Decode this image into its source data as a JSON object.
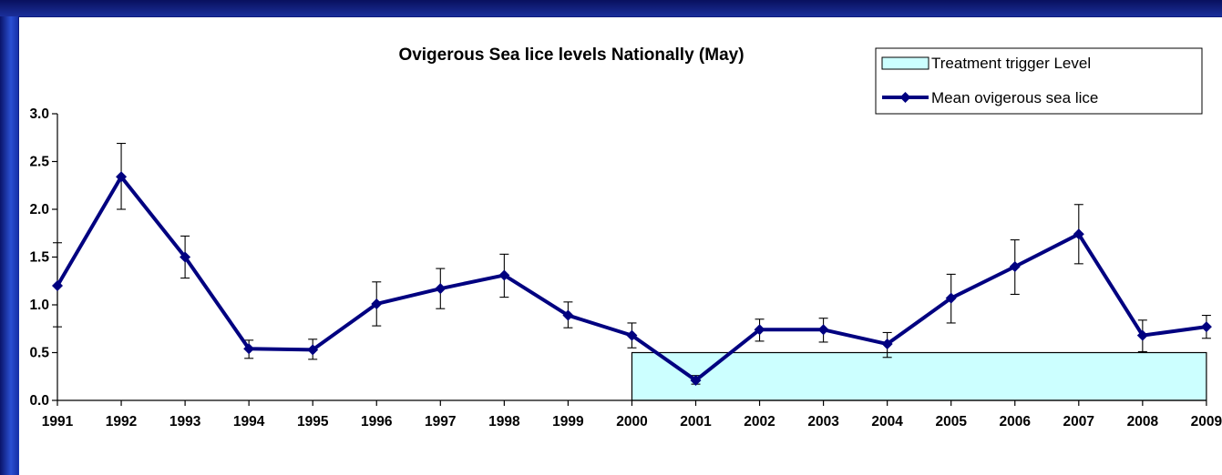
{
  "chart_data": {
    "type": "line",
    "title": "Ovigerous Sea lice levels Nationally (May)",
    "xlabel": "",
    "ylabel": "",
    "ylim": [
      0,
      3
    ],
    "yticks": [
      "0.0",
      "0.5",
      "1.0",
      "1.5",
      "2.0",
      "2.5",
      "3.0"
    ],
    "categories": [
      "1991",
      "1992",
      "1993",
      "1994",
      "1995",
      "1996",
      "1997",
      "1998",
      "1999",
      "2000",
      "2001",
      "2002",
      "2003",
      "2004",
      "2005",
      "2006",
      "2007",
      "2008",
      "2009"
    ],
    "series": [
      {
        "name": "Mean ovigerous sea lice",
        "type": "line",
        "color": "#000080",
        "marker": "diamond",
        "values": [
          1.2,
          2.34,
          1.5,
          0.54,
          0.53,
          1.01,
          1.17,
          1.31,
          0.89,
          0.68,
          0.21,
          0.74,
          0.74,
          0.59,
          1.07,
          1.4,
          1.74,
          0.68,
          0.77
        ],
        "error_low": [
          0.77,
          2.0,
          1.28,
          0.44,
          0.43,
          0.78,
          0.96,
          1.08,
          0.76,
          0.55,
          0.17,
          0.62,
          0.61,
          0.45,
          0.81,
          1.11,
          1.43,
          0.51,
          0.65
        ],
        "error_high": [
          1.65,
          2.69,
          1.72,
          0.63,
          0.64,
          1.24,
          1.38,
          1.53,
          1.03,
          0.81,
          0.26,
          0.85,
          0.86,
          0.71,
          1.32,
          1.68,
          2.05,
          0.84,
          0.89
        ]
      },
      {
        "name": "Treatment trigger Level",
        "type": "area",
        "color": "#ccffff",
        "x_start": "2000",
        "x_end": "2009",
        "value": 0.5
      }
    ],
    "grid": false,
    "legend_position": "top-right"
  }
}
